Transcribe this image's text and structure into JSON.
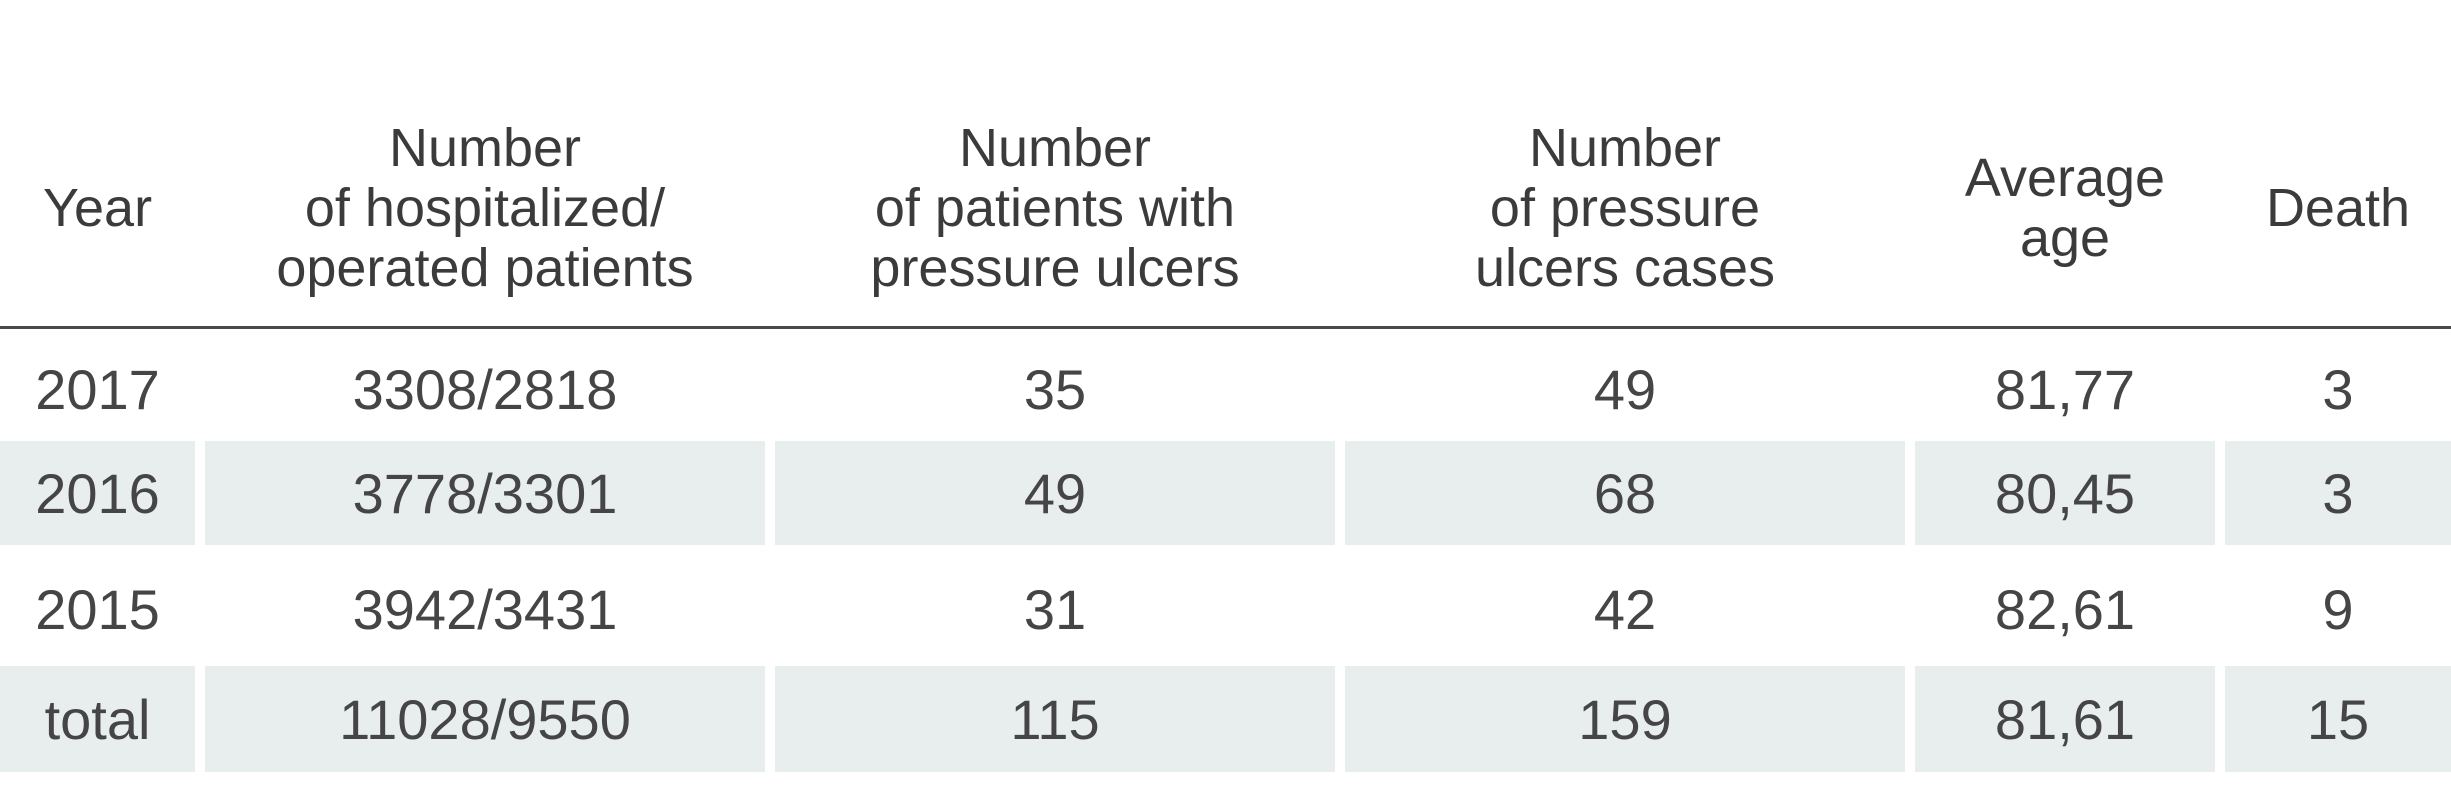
{
  "table": {
    "headers": [
      "Year",
      "Number\nof hospitalized/\noperated patients",
      "Number\nof patients with\npressure ulcers",
      "Number\nof pressure\nulcers cases",
      "Average\nage",
      "Death"
    ],
    "rows": [
      [
        "2017",
        "3308/2818",
        "35",
        "49",
        "81,77",
        "3"
      ],
      [
        "2016",
        "3778/3301",
        "49",
        "68",
        "80,45",
        "3"
      ],
      [
        "2015",
        "3942/3431",
        "31",
        "42",
        "82,61",
        "9"
      ],
      [
        "total",
        "11028/9550",
        "115",
        "159",
        "81,61",
        "15"
      ]
    ],
    "shaded_row_color": "#e8eeee",
    "rule_color": "#4a4a4a"
  }
}
